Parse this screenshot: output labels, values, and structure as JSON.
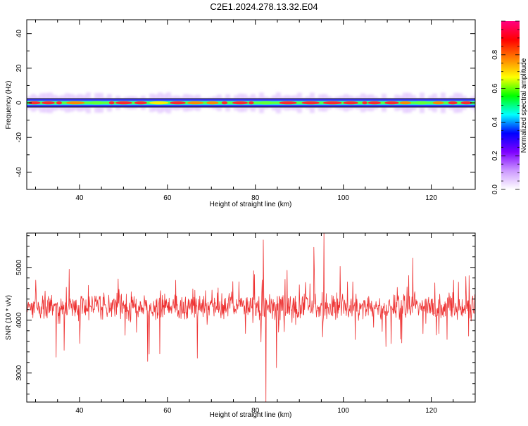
{
  "figure": {
    "title": "C2E1.2024.278.13.32.E04"
  },
  "chart_data": [
    {
      "type": "heatmap",
      "xlabel": "Height of straight line (km)",
      "ylabel": "Frequency (Hz)",
      "xlim": [
        28,
        130
      ],
      "ylim": [
        -50,
        48
      ],
      "x_ticks": [
        40,
        60,
        80,
        100,
        120
      ],
      "y_ticks": [
        -40,
        -20,
        0,
        20,
        40
      ],
      "band_center_hz": 0,
      "band_halfwidth_hz": 2,
      "colorbar": {
        "label": "Normalized spectral amplitude",
        "range": [
          0,
          1
        ],
        "ticks": [
          0.0,
          0.2,
          0.4,
          0.6,
          0.8
        ],
        "colors": [
          "#ffffff",
          "#cc99ff",
          "#7f00ff",
          "#0000ff",
          "#00ffff",
          "#00ff00",
          "#ffff00",
          "#ff8000",
          "#ff0000",
          "#ff0080"
        ]
      }
    },
    {
      "type": "line",
      "xlabel": "Height of straight line (km)",
      "ylabel": "SNR (10 * v/v)",
      "xlim": [
        28,
        130
      ],
      "ylim": [
        2450,
        5650
      ],
      "x_ticks": [
        40,
        60,
        80,
        100,
        120
      ],
      "y_ticks": [
        3000,
        4000,
        5000
      ],
      "series": [
        {
          "color": "#ee3333",
          "approx_mean": 4250,
          "approx_noise_spread": 250,
          "spikes": [
            {
              "x": 81.8,
              "y": 5520
            },
            {
              "x": 82.4,
              "y": 2450
            },
            {
              "x": 95.6,
              "y": 5650
            },
            {
              "x": 55.5,
              "y": 3220
            },
            {
              "x": 84.8,
              "y": 3100
            },
            {
              "x": 93.3,
              "y": 5380
            },
            {
              "x": 36.5,
              "y": 3430
            },
            {
              "x": 66.8,
              "y": 3280
            },
            {
              "x": 109.7,
              "y": 3500
            },
            {
              "x": 128.5,
              "y": 3700
            }
          ]
        }
      ]
    }
  ]
}
